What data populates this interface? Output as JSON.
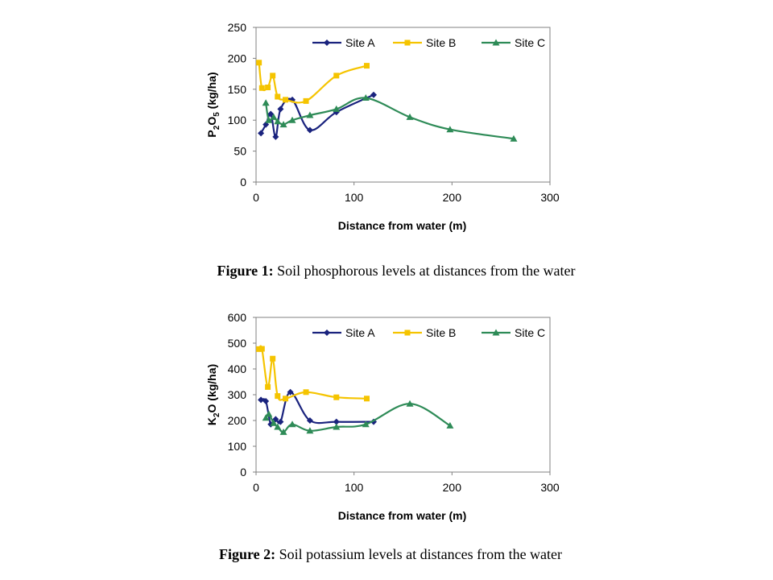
{
  "chart_data": [
    {
      "type": "line",
      "ylabel_main": "P",
      "ylabel_sub1": "2",
      "ylabel_mid": "O",
      "ylabel_sub2": "5",
      "ylabel_rest": " (kg/ha)",
      "xlabel": "Distance from water (m)",
      "xlim": [
        0,
        300
      ],
      "ylim": [
        0,
        250
      ],
      "xticks": [
        0,
        100,
        200,
        300
      ],
      "yticks": [
        0,
        50,
        100,
        150,
        200,
        250
      ],
      "legend_position": "top",
      "series": [
        {
          "name": "Site A",
          "color": "#1a237e",
          "marker": "diamond",
          "x": [
            5,
            10,
            15,
            20,
            25,
            37,
            55,
            82,
            120
          ],
          "y": [
            79,
            93,
            110,
            73,
            118,
            133,
            84,
            113,
            141
          ]
        },
        {
          "name": "Site B",
          "color": "#f5c400",
          "marker": "square",
          "x": [
            3,
            6,
            12,
            17,
            22,
            30,
            51,
            82,
            113
          ],
          "y": [
            193,
            152,
            153,
            172,
            138,
            133,
            131,
            172,
            188
          ]
        },
        {
          "name": "Site C",
          "color": "#2e8b57",
          "marker": "triangle",
          "x": [
            10,
            13,
            18,
            22,
            28,
            37,
            55,
            82,
            112,
            157,
            198,
            263
          ],
          "y": [
            128,
            100,
            105,
            98,
            93,
            100,
            108,
            118,
            136,
            105,
            85,
            70
          ]
        }
      ]
    },
    {
      "type": "line",
      "ylabel_main": "K",
      "ylabel_sub1": "2",
      "ylabel_mid": "O",
      "ylabel_sub2": "",
      "ylabel_rest": " (kg/ha)",
      "xlabel": "Distance from water (m)",
      "xlim": [
        0,
        300
      ],
      "ylim": [
        0,
        600
      ],
      "xticks": [
        0,
        100,
        200,
        300
      ],
      "yticks": [
        0,
        100,
        200,
        300,
        400,
        500,
        600
      ],
      "legend_position": "top",
      "series": [
        {
          "name": "Site A",
          "color": "#1a237e",
          "marker": "diamond",
          "x": [
            5,
            10,
            15,
            20,
            25,
            35,
            55,
            82,
            120
          ],
          "y": [
            280,
            275,
            185,
            205,
            195,
            310,
            200,
            195,
            195
          ]
        },
        {
          "name": "Site B",
          "color": "#f5c400",
          "marker": "square",
          "x": [
            3,
            6,
            12,
            17,
            22,
            30,
            51,
            82,
            113
          ],
          "y": [
            477,
            478,
            330,
            440,
            295,
            285,
            310,
            290,
            285
          ]
        },
        {
          "name": "Site C",
          "color": "#2e8b57",
          "marker": "triangle",
          "x": [
            10,
            13,
            18,
            22,
            28,
            37,
            55,
            82,
            112,
            157,
            198
          ],
          "y": [
            210,
            225,
            190,
            175,
            155,
            185,
            160,
            175,
            185,
            265,
            180
          ]
        }
      ]
    }
  ],
  "captions": [
    {
      "label": "Figure 1:",
      "text": " Soil phosphorous levels at distances from the water"
    },
    {
      "label": "Figure 2:",
      "text": " Soil potassium levels at distances from the water"
    }
  ]
}
